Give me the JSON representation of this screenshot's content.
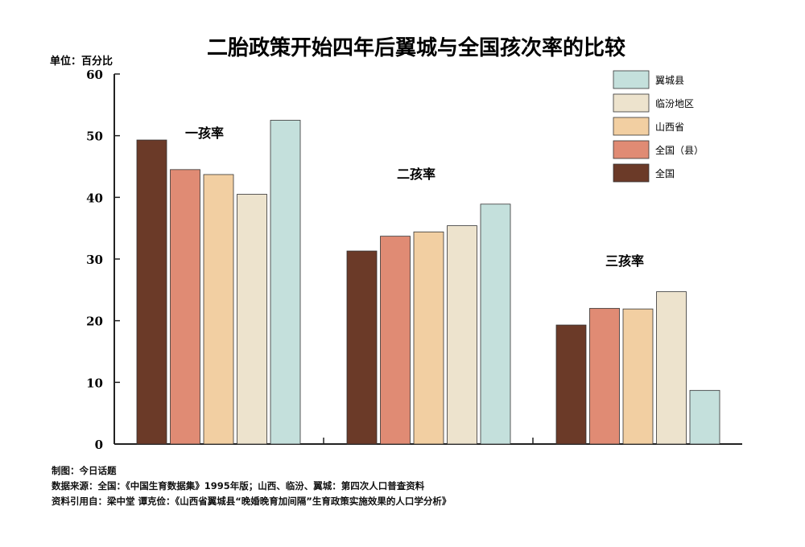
{
  "title": "二胎政策开始四年后翼城与全国孩次率的比较",
  "unit_label": "单位：百分比",
  "chart_data": {
    "type": "bar",
    "categories": [
      "一孩率",
      "二孩率",
      "三孩率"
    ],
    "series": [
      {
        "name": "全国",
        "color": "#6b3a28",
        "values": [
          49.3,
          31.3,
          19.3
        ]
      },
      {
        "name": "全国（县）",
        "color": "#e08b74",
        "values": [
          44.5,
          33.7,
          22.0
        ]
      },
      {
        "name": "山西省",
        "color": "#f2cfa2",
        "values": [
          43.7,
          34.4,
          21.9
        ]
      },
      {
        "name": "临汾地区",
        "color": "#ede3cd",
        "values": [
          40.5,
          35.4,
          24.7
        ]
      },
      {
        "name": "翼城县",
        "color": "#c4e0dc",
        "values": [
          52.5,
          38.9,
          8.7
        ]
      }
    ],
    "legend_order": [
      "翼城县",
      "临汾地区",
      "山西省",
      "全国（县）",
      "全国"
    ],
    "legend_position": "top-right",
    "ylim": [
      0,
      60
    ],
    "yticks": [
      "0",
      "10",
      "20",
      "30",
      "40",
      "50",
      "60"
    ],
    "grid": false
  },
  "footer": {
    "line1": "制图：今日话题",
    "line2": "数据来源：全国：《中国生育数据集》1995年版；山西、临汾、翼城：第四次人口普查资料",
    "line3": "资料引用自：梁中堂 谭克俭：《山西省翼城县“晚婚晚育加间隔”生育政策实施效果的人口学分析》"
  }
}
